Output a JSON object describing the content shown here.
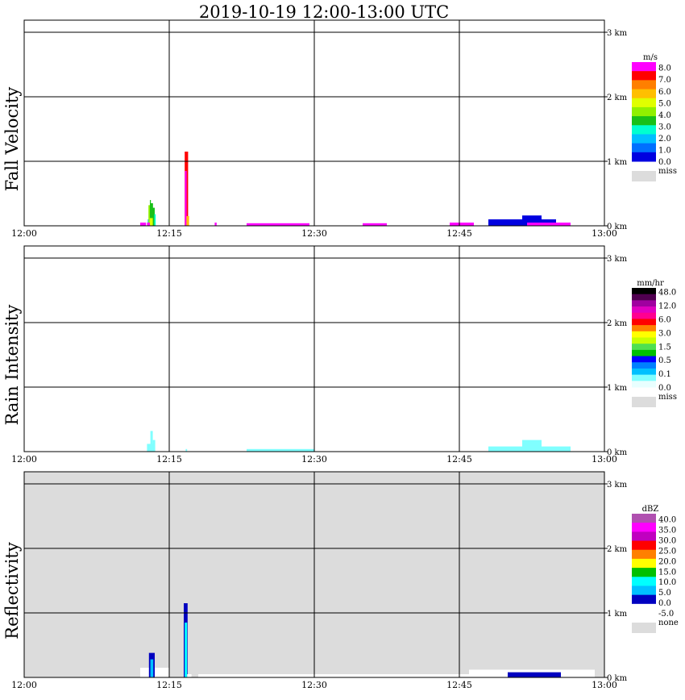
{
  "title": "2019-10-19   12:00-13:00 UTC",
  "colors": {
    "miss": "#dcdcdc",
    "grid": "#000000"
  },
  "chart_data": [
    {
      "type": "heatmap",
      "name": "Fall Velocity",
      "ylabel": "Fall Velocity",
      "x_ticks": [
        "12:00",
        "12:15",
        "12:30",
        "12:45",
        "13:00"
      ],
      "x_range": [
        "12:00",
        "13:00"
      ],
      "y_ticks": [
        "0 km",
        "1 km",
        "2 km",
        "3 km"
      ],
      "y_range_km": [
        0,
        3.2
      ],
      "background": "white",
      "colorbar": {
        "unit": "m/s",
        "labels": [
          "8.0",
          "7.0",
          "6.0",
          "5.0",
          "4.0",
          "3.0",
          "2.0",
          "1.0",
          "0.0"
        ],
        "colors": [
          "#ff00ff",
          "#ff0000",
          "#ff7f00",
          "#ffbf00",
          "#e0ff00",
          "#90f000",
          "#18c018",
          "#00ffd0",
          "#00bfff",
          "#0070ff",
          "#0000e0"
        ],
        "miss_label": "miss"
      },
      "echoes": [
        {
          "t0": 12.0,
          "t1": 12.6,
          "zmax": 0.05,
          "color": "#ff00ff"
        },
        {
          "t0": 12.78,
          "t1": 13.02,
          "zmax": 0.1,
          "color": "#00bfff"
        },
        {
          "t0": 12.85,
          "t1": 13.2,
          "zmax": 0.32,
          "color": "#90f000"
        },
        {
          "t0": 13.0,
          "t1": 13.1,
          "zmax": 0.4,
          "color": "#18c018"
        },
        {
          "t0": 13.08,
          "t1": 13.32,
          "zmax": 0.35,
          "color": "#18c018"
        },
        {
          "t0": 13.2,
          "t1": 13.5,
          "zmax": 0.28,
          "color": "#18c018"
        },
        {
          "t0": 13.45,
          "t1": 13.6,
          "zmax": 0.18,
          "color": "#00ffd0"
        },
        {
          "t0": 12.98,
          "t1": 13.3,
          "zmax": 0.12,
          "color": "#e0ff00"
        },
        {
          "t0": 12.7,
          "t1": 13.0,
          "zmax": 0.05,
          "color": "#ff00ff"
        },
        {
          "t0": 16.6,
          "t1": 16.95,
          "zmax": 1.15,
          "color": "#ff0000"
        },
        {
          "t0": 16.62,
          "t1": 16.8,
          "zmax": 0.85,
          "color": "#ff00ff"
        },
        {
          "t0": 16.78,
          "t1": 17.05,
          "zmax": 0.15,
          "color": "#ffbf00"
        },
        {
          "t0": 19.7,
          "t1": 19.9,
          "zmax": 0.05,
          "color": "#ff00ff"
        },
        {
          "t0": 23.0,
          "t1": 29.5,
          "zmax": 0.04,
          "color": "#ff00ff"
        },
        {
          "t0": 35.0,
          "t1": 37.5,
          "zmax": 0.04,
          "color": "#ff00ff"
        },
        {
          "t0": 44.0,
          "t1": 46.5,
          "zmax": 0.05,
          "color": "#ff00ff"
        },
        {
          "t0": 48.0,
          "t1": 55.0,
          "zmax": 0.1,
          "color": "#0000e0"
        },
        {
          "t0": 51.5,
          "t1": 53.5,
          "zmax": 0.16,
          "color": "#0000e0"
        },
        {
          "t0": 52.0,
          "t1": 56.5,
          "zmax": 0.05,
          "color": "#ff00ff"
        }
      ]
    },
    {
      "type": "heatmap",
      "name": "Rain Intensity",
      "ylabel": "Rain Intensity",
      "x_ticks": [
        "12:00",
        "12:15",
        "12:30",
        "12:45",
        "13:00"
      ],
      "x_range": [
        "12:00",
        "13:00"
      ],
      "y_ticks": [
        "0 km",
        "1 km",
        "2 km",
        "3 km"
      ],
      "y_range_km": [
        0,
        3.2
      ],
      "background": "white",
      "colorbar": {
        "unit": "mm/hr",
        "labels": [
          "48.0",
          "12.0",
          "6.0",
          "3.0",
          "1.5",
          "0.5",
          "0.1",
          "0.0"
        ],
        "colors": [
          "#000000",
          "#500050",
          "#a000a0",
          "#e000c0",
          "#ff0090",
          "#ff0000",
          "#ff8000",
          "#ffff00",
          "#c8ff00",
          "#50e050",
          "#00c000",
          "#0000ff",
          "#0080ff",
          "#00c0ff",
          "#80ffff",
          "#e8ffff"
        ],
        "miss_label": "miss"
      },
      "echoes": [
        {
          "t0": 12.7,
          "t1": 13.5,
          "zmax": 0.12,
          "color": "#80ffff"
        },
        {
          "t0": 13.05,
          "t1": 13.3,
          "zmax": 0.32,
          "color": "#80ffff"
        },
        {
          "t0": 13.3,
          "t1": 13.55,
          "zmax": 0.18,
          "color": "#80ffff"
        },
        {
          "t0": 16.7,
          "t1": 16.85,
          "zmax": 0.04,
          "color": "#80ffff"
        },
        {
          "t0": 23.0,
          "t1": 30.0,
          "zmax": 0.04,
          "color": "#80ffff"
        },
        {
          "t0": 48.0,
          "t1": 56.5,
          "zmax": 0.08,
          "color": "#80ffff"
        },
        {
          "t0": 51.5,
          "t1": 53.5,
          "zmax": 0.18,
          "color": "#80ffff"
        }
      ]
    },
    {
      "type": "heatmap",
      "name": "Reflectivity",
      "ylabel": "Reflectivity",
      "x_ticks": [
        "12:00",
        "12:15",
        "12:30",
        "12:45",
        "13:00"
      ],
      "x_range": [
        "12:00",
        "13:00"
      ],
      "y_ticks": [
        "0 km",
        "1 km",
        "2 km",
        "3 km"
      ],
      "y_range_km": [
        0,
        3.2
      ],
      "background": "miss",
      "colorbar": {
        "unit": "dBZ",
        "labels": [
          "40.0",
          "35.0",
          "30.0",
          "25.0",
          "20.0",
          "15.0",
          "10.0",
          "5.0",
          "0.0",
          "-5.0"
        ],
        "colors": [
          "#b050b0",
          "#ff00ff",
          "#c000c0",
          "#ff0000",
          "#ff8000",
          "#ffff00",
          "#00c000",
          "#00ffff",
          "#00c0ff",
          "#0000c0",
          "#ffffff"
        ],
        "none_label": "none",
        "miss_label": ""
      },
      "echoes": [
        {
          "t0": 12.0,
          "t1": 15.0,
          "zmax": 0.15,
          "color": "#ffffff"
        },
        {
          "t0": 12.9,
          "t1": 13.5,
          "zmax": 0.38,
          "color": "#0000c0"
        },
        {
          "t0": 13.05,
          "t1": 13.35,
          "zmax": 0.28,
          "color": "#00c0ff"
        },
        {
          "t0": 16.5,
          "t1": 16.9,
          "zmax": 1.15,
          "color": "#0000c0"
        },
        {
          "t0": 16.6,
          "t1": 16.85,
          "zmax": 0.85,
          "color": "#00ffff"
        },
        {
          "t0": 16.85,
          "t1": 17.3,
          "zmax": 0.05,
          "color": "#ffffff"
        },
        {
          "t0": 18.0,
          "t1": 30.0,
          "zmax": 0.05,
          "color": "#ffffff"
        },
        {
          "t0": 30.0,
          "t1": 46.0,
          "zmax": 0.05,
          "color": "#ffffff"
        },
        {
          "t0": 46.0,
          "t1": 59.0,
          "zmax": 0.12,
          "color": "#ffffff"
        },
        {
          "t0": 50.0,
          "t1": 55.5,
          "zmax": 0.08,
          "color": "#0000c0"
        }
      ]
    }
  ]
}
